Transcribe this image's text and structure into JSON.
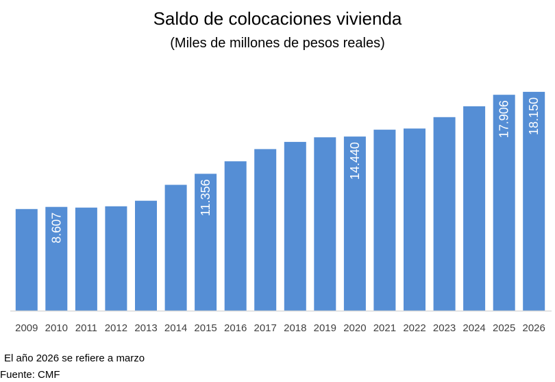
{
  "chart_data": {
    "type": "bar",
    "title": "Saldo de colocaciones vivienda",
    "subtitle": "(Miles de millones de pesos reales)",
    "categories": [
      "2009",
      "2010",
      "2011",
      "2012",
      "2013",
      "2014",
      "2015",
      "2016",
      "2017",
      "2018",
      "2019",
      "2020",
      "2021",
      "2022",
      "2023",
      "2024",
      "2025",
      "2026"
    ],
    "values": [
      8.43,
      8.607,
      8.55,
      8.66,
      9.12,
      10.44,
      11.356,
      12.39,
      13.4,
      14.0,
      14.38,
      14.44,
      15.01,
      15.11,
      16.05,
      16.95,
      17.906,
      18.15
    ],
    "data_labels": [
      {
        "index": 1,
        "text": "8.607"
      },
      {
        "index": 6,
        "text": "11.356"
      },
      {
        "index": 11,
        "text": "14.440"
      },
      {
        "index": 16,
        "text": "17.906"
      },
      {
        "index": 17,
        "text": "18.150"
      }
    ],
    "ylim": [
      0,
      18.6
    ],
    "bar_color": "#558ED5",
    "axis_color": "#D9D9D9",
    "grid": false,
    "legend": "none"
  },
  "footer": {
    "note": "El año 2026 se refiere a marzo",
    "source": "Fuente: CMF"
  }
}
